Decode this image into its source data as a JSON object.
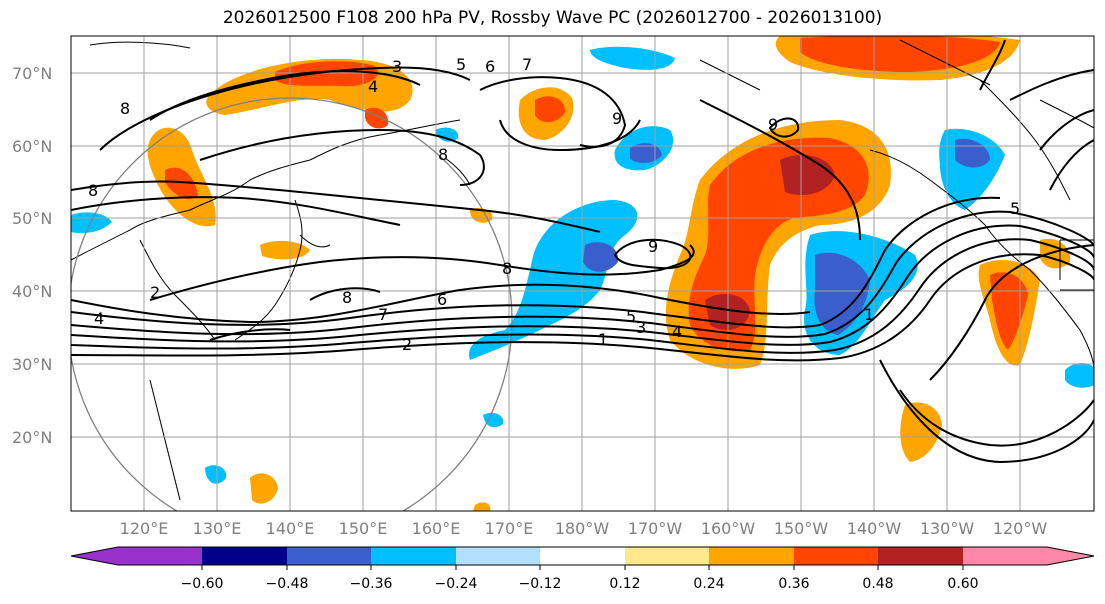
{
  "title": "2026012500 F108 200 hPa PV, Rossby Wave PC (2026012700 - 2026013100)",
  "lat_labels": [
    "70°N",
    "60°N",
    "50°N",
    "40°N",
    "30°N",
    "20°N"
  ],
  "lon_labels": [
    "120°E",
    "130°E",
    "140°E",
    "150°E",
    "160°E",
    "170°E",
    "180°W",
    "170°W",
    "160°W",
    "150°W",
    "140°W",
    "130°W",
    "120°W"
  ],
  "colorbar": {
    "colors": [
      "#9932cc",
      "#00008b",
      "#3a5fcd",
      "#00bfff",
      "#b2dfff",
      "#ffffff",
      "#ffe98c",
      "#ffa500",
      "#ff4500",
      "#b22222",
      "#ff88aa"
    ],
    "ticks": [
      "−0.60",
      "−0.48",
      "−0.36",
      "−0.24",
      "−0.12",
      "0.12",
      "0.24",
      "0.36",
      "0.48",
      "0.60"
    ]
  },
  "contour_labels": [
    "1",
    "2",
    "3",
    "4",
    "5",
    "6",
    "7",
    "8",
    "9"
  ],
  "shading_colors": {
    "pos_light": "#ffa500",
    "pos_mid": "#ff4500",
    "pos_dark": "#b22222",
    "neg_light": "#00bfff",
    "neg_mid": "#3a5fcd",
    "neg_dark": "#00008b"
  }
}
